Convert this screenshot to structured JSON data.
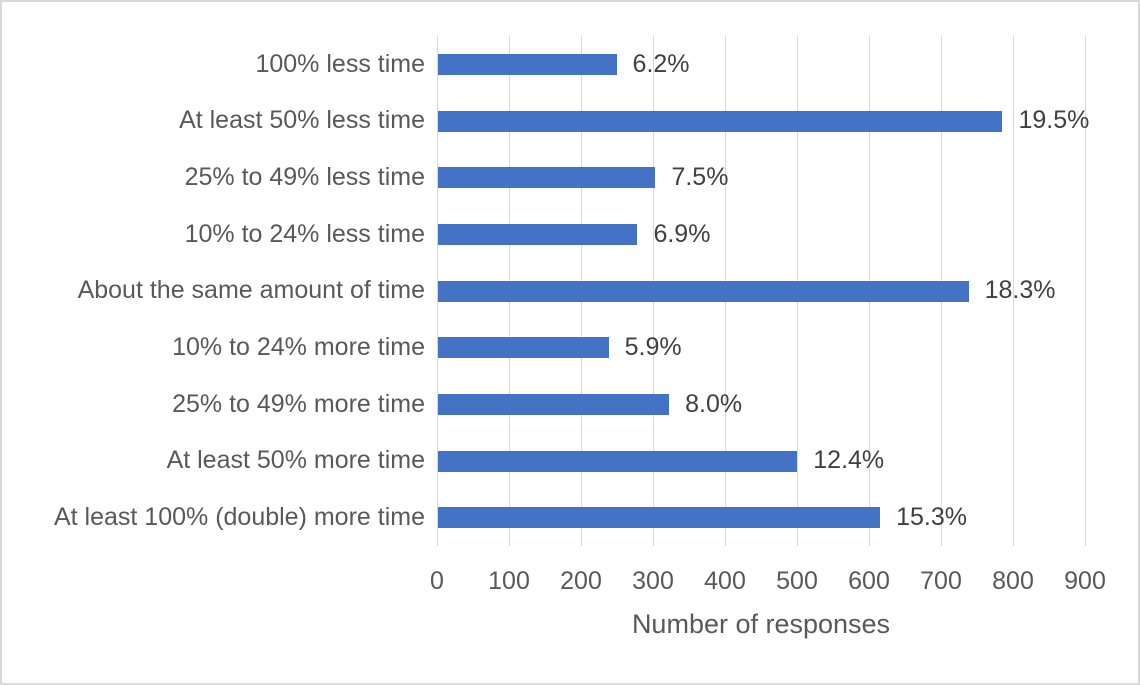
{
  "chart_data": {
    "type": "bar",
    "orientation": "horizontal",
    "title": "",
    "xlabel": "Number of responses",
    "ylabel": "",
    "xlim": [
      0,
      900
    ],
    "xticks": [
      0,
      100,
      200,
      300,
      400,
      500,
      600,
      700,
      800,
      900
    ],
    "grid": "vertical-gridlines-on",
    "legend": "none",
    "categories": [
      "100% less time",
      "At least 50% less time",
      "25% to 49% less time",
      "10% to 24% less time",
      "About the same amount of time",
      "10% to 24% more time",
      "25% to 49% more time",
      "At least 50% more time",
      "At least 100% (double) more time"
    ],
    "values": [
      248,
      784,
      302,
      277,
      737,
      237,
      321,
      499,
      614
    ],
    "data_labels": [
      "6.2%",
      "19.5%",
      "7.5%",
      "6.9%",
      "18.3%",
      "5.9%",
      "8.0%",
      "12.4%",
      "15.3%"
    ],
    "colors": {
      "bar": "#4472C4",
      "gridline": "#D9D9D9",
      "border": "#D9D9D9",
      "axis_text": "#595959",
      "data_label_text": "#404040",
      "background": "#FFFFFF"
    }
  }
}
